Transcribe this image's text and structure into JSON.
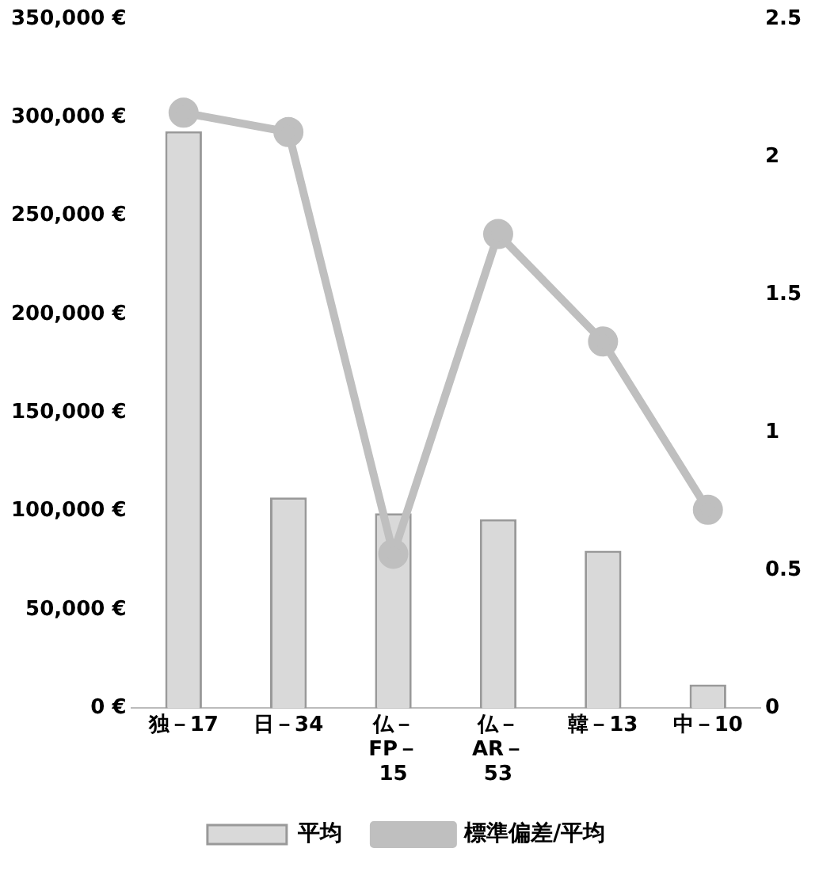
{
  "chart_data": {
    "type": "bar",
    "categories": [
      "独－17",
      "日－34",
      "仏－FP－15",
      "仏－AR－53",
      "韓－13",
      "中－10"
    ],
    "series": [
      {
        "name": "平均",
        "color": "#d9d9d9",
        "values": [
          293000,
          107000,
          99000,
          96000,
          80000,
          12000
        ]
      },
      {
        "name": "標準偏差/平均",
        "type": "line",
        "axis": "y2",
        "color": "#bfbfbf",
        "values": [
          2.16,
          2.09,
          0.56,
          1.72,
          1.33,
          0.72
        ]
      }
    ],
    "ylim": [
      0,
      350000
    ],
    "yticks": [
      {
        "value": 0,
        "label": "0 €"
      },
      {
        "value": 50000,
        "label": "50,000 €"
      },
      {
        "value": 100000,
        "label": "100,000 €"
      },
      {
        "value": 150000,
        "label": "150,000 €"
      },
      {
        "value": 200000,
        "label": "200,000 €"
      },
      {
        "value": 250000,
        "label": "250,000 €"
      },
      {
        "value": 300000,
        "label": "300,000 €"
      },
      {
        "value": 350000,
        "label": "350,000 €"
      }
    ],
    "y2lim": [
      0,
      2.5
    ],
    "y2ticks": [
      0,
      0.5,
      1,
      1.5,
      2,
      2.5
    ],
    "grid": false,
    "legend": "bottom",
    "marker": "circle",
    "line_style": "solid"
  }
}
